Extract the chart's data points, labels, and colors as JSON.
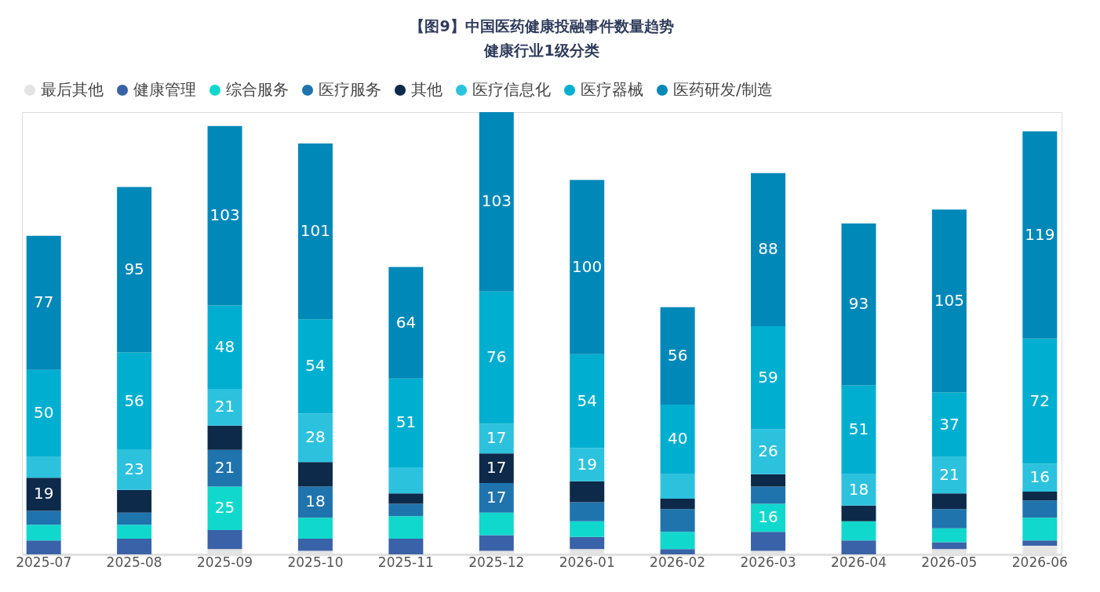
{
  "chart_data": {
    "type": "bar",
    "stacked": true,
    "title": "【图9】中国医药健康投融事件数量趋势",
    "subtitle": "健康行业1级分类",
    "categories": [
      "2025-07",
      "2025-08",
      "2025-09",
      "2025-10",
      "2025-11",
      "2025-12",
      "2026-01",
      "2026-02",
      "2026-03",
      "2026-04",
      "2026-05",
      "2026-06"
    ],
    "legend": "top",
    "grid": false,
    "tick_labels": "x",
    "series": [
      {
        "name": "最后其他",
        "color": "#e4e4e4",
        "values": [
          null,
          null,
          3,
          2,
          null,
          2,
          3,
          null,
          2,
          null,
          3,
          5
        ],
        "value_labels": [
          null,
          null,
          null,
          null,
          null,
          null,
          null,
          null,
          null,
          null,
          null,
          null
        ]
      },
      {
        "name": "健康管理",
        "color": "#3a62a8",
        "values": [
          8,
          9,
          11,
          7,
          9,
          9,
          7,
          3,
          11,
          8,
          4,
          3
        ],
        "value_labels": [
          null,
          null,
          null,
          null,
          null,
          null,
          null,
          null,
          null,
          null,
          null,
          null
        ]
      },
      {
        "name": "综合服务",
        "color": "#10d8cc",
        "values": [
          9,
          8,
          25,
          12,
          13,
          13,
          9,
          10,
          16,
          11,
          8,
          13
        ],
        "value_labels": [
          null,
          null,
          "25",
          null,
          null,
          null,
          null,
          null,
          "16",
          null,
          null,
          null
        ]
      },
      {
        "name": "医疗服务",
        "color": "#1f74ad",
        "values": [
          8,
          7,
          21,
          18,
          7,
          17,
          11,
          13,
          10,
          null,
          11,
          10
        ],
        "value_labels": [
          null,
          null,
          "21",
          "18",
          null,
          "17",
          null,
          null,
          null,
          null,
          null,
          null
        ]
      },
      {
        "name": "其他",
        "color": "#0d2a4a",
        "values": [
          19,
          13,
          14,
          14,
          6,
          17,
          12,
          6,
          7,
          9,
          9,
          5
        ],
        "value_labels": [
          "19",
          null,
          null,
          null,
          null,
          "17",
          null,
          null,
          null,
          null,
          null,
          null
        ]
      },
      {
        "name": "医疗信息化",
        "color": "#2cc2de",
        "values": [
          12,
          23,
          21,
          28,
          15,
          17,
          19,
          14,
          26,
          18,
          21,
          16
        ],
        "value_labels": [
          null,
          "23",
          "21",
          "28",
          null,
          "17",
          "19",
          null,
          "26",
          "18",
          "21",
          "16"
        ]
      },
      {
        "name": "医疗器械",
        "color": "#00afd0",
        "values": [
          50,
          56,
          48,
          54,
          51,
          76,
          54,
          40,
          59,
          51,
          37,
          72
        ],
        "value_labels": [
          "50",
          "56",
          "48",
          "54",
          "51",
          "76",
          "54",
          "40",
          "59",
          "51",
          "37",
          "72"
        ]
      },
      {
        "name": "医药研发/制造",
        "color": "#0088b8",
        "values": [
          77,
          95,
          103,
          101,
          64,
          103,
          100,
          56,
          88,
          93,
          105,
          119
        ],
        "value_labels": [
          "77",
          "95",
          "103",
          "101",
          "64",
          "103",
          "100",
          "56",
          "88",
          "93",
          "105",
          "119"
        ]
      }
    ]
  }
}
